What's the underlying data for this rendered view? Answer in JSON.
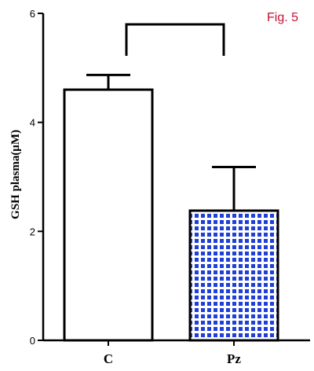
{
  "figure_label": "Fig. 5",
  "colors": {
    "axis": "#000000",
    "figure_label": "#c4122f",
    "bar_control_fill": "#ffffff",
    "bar_pz_pattern": "#1f3fd6"
  },
  "chart_data": {
    "type": "bar",
    "title": "",
    "xlabel": "",
    "ylabel": "GSH plasma(μM)",
    "ylim": [
      0,
      6
    ],
    "y_ticks": [
      0,
      2,
      4,
      6
    ],
    "categories": [
      "C",
      "Pz"
    ],
    "values": [
      4.6,
      2.38
    ],
    "error_upper": [
      0.27,
      0.8
    ],
    "bar_styles": [
      "white",
      "blue-checkered"
    ],
    "significance_bracket": {
      "from": "C",
      "to": "Pz"
    },
    "grid": false,
    "legend": "none"
  }
}
